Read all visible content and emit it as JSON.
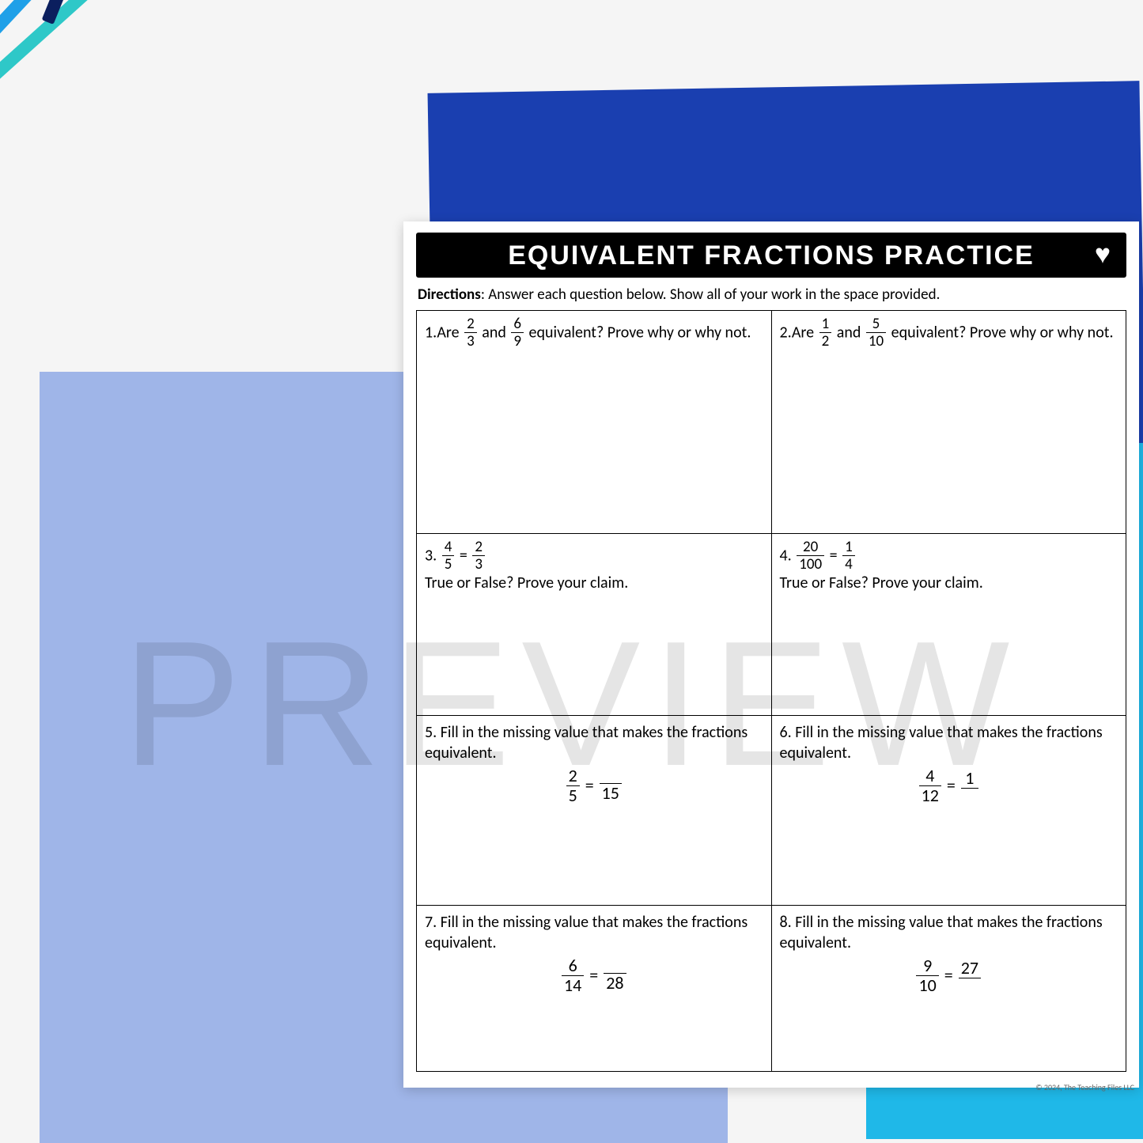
{
  "worksheet": {
    "title": "EQUIVALENT FRACTIONS PRACTICE",
    "directions_label": "Directions",
    "directions_text": ": Answer each question below. Show all of your work in the space provided.",
    "heart_glyph": "♥",
    "footer": "© 2024, The Teaching Files LLC",
    "questions": [
      {
        "num": "1",
        "prefix": "Are ",
        "f1": {
          "n": "2",
          "d": "3"
        },
        "mid": " and ",
        "f2": {
          "n": "6",
          "d": "9"
        },
        "suffix": " equivalent? Prove why or why not."
      },
      {
        "num": "2",
        "prefix": "Are ",
        "f1": {
          "n": "1",
          "d": "2"
        },
        "mid": " and ",
        "f2": {
          "n": "5",
          "d": "10"
        },
        "suffix": " equivalent? Prove why or why not."
      },
      {
        "num": "3",
        "f1": {
          "n": "4",
          "d": "5"
        },
        "eq": " = ",
        "f2": {
          "n": "2",
          "d": "3"
        },
        "line2": "True or False? Prove your claim."
      },
      {
        "num": "4",
        "f1": {
          "n": "20",
          "d": "100"
        },
        "eq": " = ",
        "f2": {
          "n": "1",
          "d": "4"
        },
        "line2": "True or False? Prove your claim."
      },
      {
        "num": "5",
        "text": "Fill in the missing value that makes the fractions equivalent.",
        "eq_f1": {
          "n": "2",
          "d": "5"
        },
        "eq_f2": {
          "n": "",
          "d": "15"
        }
      },
      {
        "num": "6",
        "text": "Fill in the missing value that makes the fractions equivalent.",
        "eq_f1": {
          "n": "4",
          "d": "12"
        },
        "eq_f2": {
          "n": "1",
          "d": ""
        }
      },
      {
        "num": "7",
        "text": "Fill in the missing value that makes the fractions equivalent.",
        "eq_f1": {
          "n": "6",
          "d": "14"
        },
        "eq_f2": {
          "n": "",
          "d": "28"
        }
      },
      {
        "num": "8",
        "text": "Fill in the missing value that makes the fractions equivalent.",
        "eq_f1": {
          "n": "9",
          "d": "10"
        },
        "eq_f2": {
          "n": "27",
          "d": ""
        }
      }
    ]
  },
  "watermark": "PREVIEW",
  "colors": {
    "pencils": [
      "#2ec8c8",
      "#1fa0e8",
      "#1060c0",
      "#0d6d7a",
      "#0b1f5e"
    ],
    "paper_dark": "#1a3fb0",
    "paper_light": "#9fb5e8",
    "paper_cyan": "#1fb8e8",
    "worksheet_bg": "#ffffff",
    "title_bg": "#000000",
    "title_fg": "#ffffff",
    "border": "#000000"
  }
}
